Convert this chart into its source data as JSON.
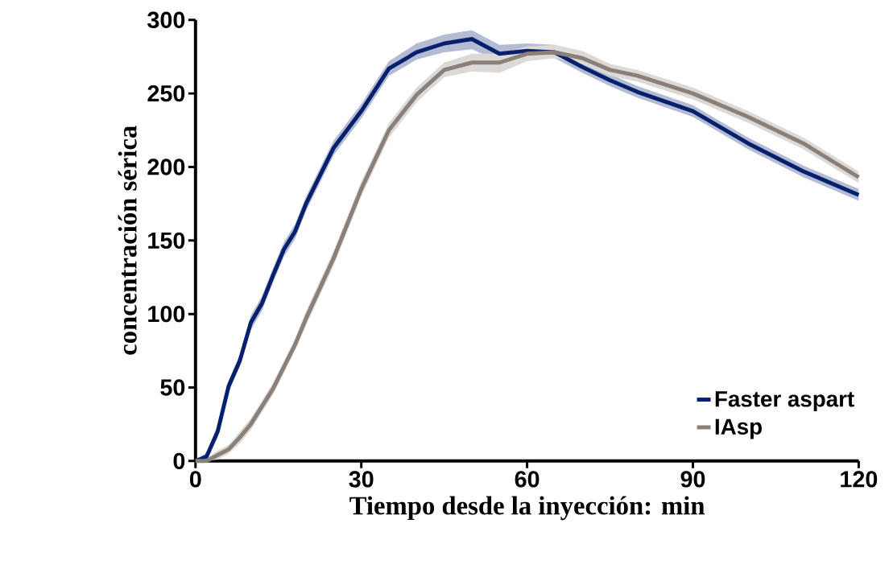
{
  "chart_data": {
    "type": "line",
    "xlabel": "Tiempo desde la inyección: min",
    "ylabel": "concentración sérica",
    "x": [
      0,
      2,
      4,
      6,
      8,
      10,
      12,
      14,
      16,
      18,
      20,
      25,
      30,
      35,
      40,
      45,
      50,
      55,
      60,
      65,
      70,
      75,
      80,
      90,
      100,
      110,
      120
    ],
    "series": [
      {
        "name": "Faster aspart",
        "color": "#06206e",
        "values": [
          0,
          3,
          20,
          51,
          68,
          94,
          107,
          126,
          144,
          156,
          175,
          213,
          238,
          267,
          278,
          284,
          287,
          277,
          279,
          278,
          268,
          259,
          251,
          238,
          216,
          197,
          181
        ],
        "lower": [
          0,
          0,
          16,
          47,
          64,
          89,
          102,
          121,
          139,
          151,
          170,
          208,
          233,
          262,
          273,
          278,
          280,
          272,
          275,
          274,
          264,
          255,
          247,
          234,
          212,
          193,
          177
        ],
        "upper": [
          0,
          6,
          24,
          55,
          72,
          99,
          112,
          131,
          149,
          161,
          180,
          218,
          243,
          272,
          284,
          290,
          293,
          283,
          284,
          283,
          272,
          263,
          255,
          242,
          220,
          201,
          185
        ]
      },
      {
        "name": "IAsp",
        "color": "#8a8079",
        "values": [
          0,
          0,
          4,
          8,
          16,
          25,
          37,
          49,
          64,
          79,
          97,
          138,
          185,
          225,
          249,
          266,
          271,
          271,
          277,
          278,
          274,
          266,
          262,
          250,
          234,
          216,
          193
        ],
        "lower": [
          0,
          0,
          1,
          5,
          12,
          21,
          33,
          45,
          60,
          75,
          92,
          133,
          180,
          220,
          244,
          261,
          265,
          264,
          272,
          274,
          270,
          262,
          258,
          246,
          230,
          212,
          189
        ],
        "upper": [
          0,
          2,
          7,
          11,
          20,
          29,
          41,
          53,
          68,
          83,
          102,
          143,
          190,
          230,
          254,
          271,
          277,
          277,
          282,
          283,
          279,
          270,
          266,
          254,
          238,
          220,
          197
        ]
      }
    ],
    "xlim": [
      0,
      120
    ],
    "ylim": [
      0,
      300
    ],
    "xticks": [
      0,
      30,
      60,
      90,
      120
    ],
    "yticks": [
      0,
      50,
      100,
      150,
      200,
      250,
      300
    ],
    "grid": false,
    "legend": "bottom right",
    "marker": "none",
    "line_style": "solid"
  }
}
